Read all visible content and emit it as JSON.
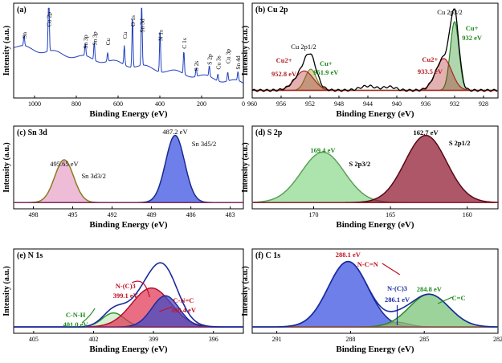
{
  "chart_data": [
    {
      "id": "a",
      "type": "line",
      "panel_label": "(a)",
      "title": "",
      "xlabel": "Binding Energy (eV)",
      "ylabel": "Intensity (a.u.)",
      "xlim": [
        1100,
        0
      ],
      "xticks": [
        1000,
        800,
        600,
        400,
        200,
        0
      ],
      "line_color": "#1f3fbf",
      "peaks": [
        {
          "label": "Sn",
          "x": 1050
        },
        {
          "label": "Cu 2p",
          "x": 932
        },
        {
          "label": "Sn 3p",
          "x": 757
        },
        {
          "label": "Sn 3p",
          "x": 714
        },
        {
          "label": "Cu",
          "x": 650
        },
        {
          "label": "Cu",
          "x": 570
        },
        {
          "label": "O 1s",
          "x": 531
        },
        {
          "label": "Sn 3d",
          "x": 487
        },
        {
          "label": "N 1s",
          "x": 399
        },
        {
          "label": "C 1s",
          "x": 285
        },
        {
          "label": "S 2s",
          "x": 226
        },
        {
          "label": "S 2p",
          "x": 163
        },
        {
          "label": "Cu 3s",
          "x": 122
        },
        {
          "label": "Cu 3p",
          "x": 75
        },
        {
          "label": "Sn 4d",
          "x": 26
        }
      ]
    },
    {
      "id": "b",
      "type": "line",
      "panel_label": "(b) Cu 2p",
      "xlabel": "Binding Energy (eV)",
      "ylabel": "Intensity (a.u.)",
      "xlim": [
        960,
        926
      ],
      "xticks": [
        960,
        956,
        952,
        948,
        944,
        940,
        936,
        932,
        928
      ],
      "series": [
        {
          "name": "Cu+ 932",
          "center": 932,
          "fwhm": 1.4,
          "height": 0.78,
          "color": "#1e8a1e"
        },
        {
          "name": "Cu2+ 933.5",
          "center": 933.5,
          "fwhm": 2.6,
          "height": 0.36,
          "color": "#b02020"
        },
        {
          "name": "Cu+ 951.9",
          "center": 951.9,
          "fwhm": 1.8,
          "height": 0.24,
          "color": "#7a8a20"
        },
        {
          "name": "Cu2+ 952.8",
          "center": 952.8,
          "fwhm": 3.0,
          "height": 0.22,
          "color": "#b02020"
        }
      ],
      "annotations": [
        {
          "text": "Cu 2p1/2",
          "x": 952
        },
        {
          "text": "Cu 2p3/2",
          "x": 932
        },
        {
          "text": "Cu2+",
          "x": 955.6
        },
        {
          "text": "952.8 eV",
          "x": 955.6
        },
        {
          "text": "Cu+",
          "x": 949.8
        },
        {
          "text": "951.9 eV",
          "x": 949.8
        },
        {
          "text": "Cu2+",
          "x": 935.4
        },
        {
          "text": "933.5 eV",
          "x": 935.4
        },
        {
          "text": "Cu+",
          "x": 929.6
        },
        {
          "text": "932 eV",
          "x": 929.6
        }
      ]
    },
    {
      "id": "c",
      "type": "area",
      "panel_label": "(c) Sn 3d",
      "xlabel": "Binding Energy (eV)",
      "ylabel": "Intensity (a.u.)",
      "xlim": [
        499.5,
        482
      ],
      "xticks": [
        498,
        495,
        492,
        489,
        486,
        483
      ],
      "series": [
        {
          "name": "Sn 3d3/2",
          "center": 495.65,
          "fwhm": 1.7,
          "height": 0.56,
          "color": "#e8a0c8",
          "edge": "#8a7a20"
        },
        {
          "name": "Sn 3d5/2",
          "center": 487.2,
          "fwhm": 1.7,
          "height": 0.88,
          "color": "#3048e0",
          "edge": "#1a2a90"
        }
      ],
      "annotations": [
        {
          "text": "495.65 eV",
          "x": 495.65
        },
        {
          "text": "Sn 3d3/2",
          "x": 493.4
        },
        {
          "text": "487.2 eV",
          "x": 487.2
        },
        {
          "text": "Sn 3d5/2",
          "x": 485.0
        }
      ]
    },
    {
      "id": "d",
      "type": "area",
      "panel_label": "(d) S 2p",
      "xlabel": "Binding Energy (eV)",
      "ylabel": "Intensity (a.u.)",
      "xlim": [
        174,
        158
      ],
      "xticks": [
        170,
        165,
        160
      ],
      "series": [
        {
          "name": "S 2p3/2",
          "center": 169.4,
          "fwhm": 3.3,
          "height": 0.66,
          "color": "#8ad88a",
          "edge": "#5aa05a"
        },
        {
          "name": "S 2p1/2",
          "center": 162.7,
          "fwhm": 3.2,
          "height": 0.88,
          "color": "#8a1028",
          "edge": "#5a0818"
        }
      ],
      "annotations": [
        {
          "text": "169.4 eV",
          "x": 169.4
        },
        {
          "text": "S 2p3/2",
          "x": 167.0
        },
        {
          "text": "162.7 eV",
          "x": 162.7
        },
        {
          "text": "S 2p1/2",
          "x": 160.5
        }
      ]
    },
    {
      "id": "e",
      "type": "area",
      "panel_label": "(e) N 1s",
      "xlabel": "Binding Energy (eV)",
      "ylabel": "Intensity (a.u.)",
      "xlim": [
        406,
        394.5
      ],
      "xticks": [
        405,
        402,
        399,
        396
      ],
      "series": [
        {
          "name": "C-N-H",
          "center": 401.0,
          "fwhm": 1.3,
          "height": 0.18,
          "color": "#c8e8c0",
          "edge": "#2a9a2a"
        },
        {
          "name": "N-(C)3",
          "center": 399.1,
          "fwhm": 2.3,
          "height": 0.5,
          "color": "#e03050",
          "edge": "#b01030"
        },
        {
          "name": "C-N=C",
          "center": 398.4,
          "fwhm": 1.6,
          "height": 0.4,
          "color": "#3848c8",
          "edge": "#1a2aa0"
        }
      ],
      "envelope_color": "#1a2aa0",
      "annotations": [
        {
          "text": "N-(C)3",
          "x": 400.4
        },
        {
          "text": "399.1 eV",
          "x": 400.4
        },
        {
          "text": "C-N=C",
          "x": 397.5
        },
        {
          "text": "398.4 eV",
          "x": 397.5
        },
        {
          "text": "C-N-H",
          "x": 402.9
        },
        {
          "text": "401.0 eV",
          "x": 402.9
        }
      ]
    },
    {
      "id": "f",
      "type": "area",
      "panel_label": "(f) C 1s",
      "xlabel": "Binding Energy (eV)",
      "ylabel": "Intensity (a.u.)",
      "xlim": [
        292,
        282
      ],
      "xticks": [
        291,
        288,
        285,
        282
      ],
      "series": [
        {
          "name": "N-C=N",
          "center": 288.1,
          "fwhm": 1.9,
          "height": 0.84,
          "color": "#3048e0",
          "edge": "#1a2a90"
        },
        {
          "name": "N-(C)3",
          "center": 286.1,
          "fwhm": 1.1,
          "height": 0.06,
          "color": "#e090b0",
          "edge": "#b04070"
        },
        {
          "name": "C=C",
          "center": 284.8,
          "fwhm": 1.9,
          "height": 0.42,
          "color": "#70c070",
          "edge": "#2a8a2a"
        }
      ],
      "envelope_color": "#1a2aa0",
      "annotations": [
        {
          "text": "288.1 eV",
          "x": 288.1
        },
        {
          "text": "N-C=N",
          "x": 287.3
        },
        {
          "text": "N-(C)3",
          "x": 286.1
        },
        {
          "text": "286.1 eV",
          "x": 286.1
        },
        {
          "text": "284.8 eV",
          "x": 284.8
        },
        {
          "text": "C=C",
          "x": 283.6
        }
      ]
    }
  ]
}
